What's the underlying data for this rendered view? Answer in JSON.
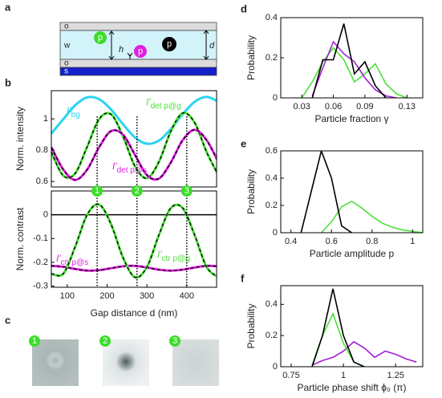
{
  "panels": [
    "a",
    "b",
    "c",
    "d",
    "e",
    "f"
  ],
  "schematic": {
    "layers": [
      "o",
      "w",
      "o",
      "s"
    ],
    "particles": [
      "p",
      "p",
      "p"
    ],
    "h": "h",
    "d": "d"
  },
  "images": [
    "1",
    "2",
    "3"
  ],
  "chart_data": [
    {
      "type": "line",
      "ylabel": "Norm. intensity",
      "x": [
        60,
        90,
        120,
        150,
        180,
        210,
        240,
        270,
        300,
        330,
        360,
        390,
        420,
        450,
        480
      ],
      "xlim": [
        60,
        475
      ],
      "ylim": [
        0.565,
        1.18
      ],
      "yticks": [
        0.6,
        0.8,
        1
      ],
      "series": [
        {
          "name": "I′",
          "subscript": "bg",
          "color": "#2ad4f0",
          "values": [
            0.906,
            0.998,
            1.087,
            1.137,
            1.126,
            1.06,
            0.966,
            0.881,
            0.841,
            0.861,
            0.935,
            1.03,
            1.109,
            1.14,
            1.109
          ]
        },
        {
          "name": "I′",
          "subscript": "det p@g",
          "color": "#4be03a",
          "dashed": true,
          "values": [
            0.788,
            0.637,
            0.652,
            0.822,
            0.998,
            1.029,
            0.888,
            0.697,
            0.621,
            0.725,
            0.92,
            1.037,
            0.975,
            0.788,
            0.637
          ]
        },
        {
          "name": "I′",
          "subscript": "det p@s",
          "color": "#e020e0",
          "dashed": true,
          "values": [
            0.819,
            0.676,
            0.61,
            0.676,
            0.819,
            0.922,
            0.899,
            0.77,
            0.641,
            0.618,
            0.721,
            0.864,
            0.93,
            0.864,
            0.721
          ]
        }
      ]
    },
    {
      "type": "line",
      "ylabel": "Norm. contrast",
      "xlabel": "Gap distance d (nm)",
      "x": [
        60,
        90,
        120,
        150,
        180,
        210,
        240,
        270,
        300,
        330,
        360,
        390,
        420,
        450,
        480
      ],
      "xlim": [
        60,
        475
      ],
      "xticks": [
        100,
        200,
        300,
        400
      ],
      "ylim": [
        -0.305,
        0.1
      ],
      "yticks": [
        0,
        -0.1,
        -0.2,
        -0.3
      ],
      "hlines": [
        0
      ],
      "vlines": [
        {
          "x": 175,
          "label": "1"
        },
        {
          "x": 275,
          "label": "2"
        },
        {
          "x": 400,
          "label": "3"
        }
      ],
      "series": [
        {
          "name": "I′",
          "subscript": "ctr p@s",
          "color": "#e020e0",
          "dashed": true,
          "values": [
            -0.215,
            -0.219,
            -0.228,
            -0.235,
            -0.233,
            -0.225,
            -0.217,
            -0.215,
            -0.222,
            -0.231,
            -0.235,
            -0.231,
            -0.222,
            -0.215,
            -0.217
          ]
        },
        {
          "name": "I′",
          "subscript": "ctr p@g",
          "color": "#4be03a",
          "dashed": true,
          "values": [
            -0.248,
            -0.248,
            -0.134,
            0.0,
            0.043,
            -0.04,
            -0.18,
            -0.263,
            -0.22,
            -0.086,
            0.028,
            0.028,
            -0.086,
            -0.22,
            -0.263
          ]
        }
      ]
    },
    {
      "type": "line",
      "ylabel": "Probability",
      "xlabel": "Particle fraction γ",
      "xlim": [
        0.01,
        0.145
      ],
      "xticks": [
        0.03,
        0.06,
        0.09,
        0.13
      ],
      "ylim": [
        0,
        0.4
      ],
      "yticks": [
        0,
        0.2,
        0.4
      ],
      "series": [
        {
          "color": "#4be03a",
          "x": [
            0.03,
            0.04,
            0.05,
            0.06,
            0.07,
            0.08,
            0.09,
            0.1,
            0.11,
            0.12,
            0.13
          ],
          "values": [
            0,
            0.08,
            0.18,
            0.25,
            0.19,
            0.08,
            0.12,
            0.17,
            0.07,
            0.02,
            0
          ]
        },
        {
          "color": "#a21fd6",
          "x": [
            0.04,
            0.05,
            0.06,
            0.07,
            0.08,
            0.09,
            0.1,
            0.11,
            0.12
          ],
          "values": [
            0.01,
            0.15,
            0.28,
            0.22,
            0.18,
            0.1,
            0.04,
            0.01,
            0
          ]
        },
        {
          "color": "#000000",
          "x": [
            0.04,
            0.05,
            0.06,
            0.07,
            0.08,
            0.09,
            0.1,
            0.11
          ],
          "values": [
            0,
            0.19,
            0.19,
            0.37,
            0.12,
            0.18,
            0.06,
            0
          ]
        }
      ]
    },
    {
      "type": "line",
      "ylabel": "Probability",
      "xlabel": "Particle amplitude p",
      "xlim": [
        0.35,
        1.05
      ],
      "xticks": [
        0.4,
        0.6,
        0.8,
        1
      ],
      "ylim": [
        0,
        0.6
      ],
      "yticks": [
        0,
        0.2,
        0.4,
        0.6
      ],
      "series": [
        {
          "color": "#4be03a",
          "x": [
            0.55,
            0.6,
            0.65,
            0.7,
            0.75,
            0.8,
            0.85,
            0.9,
            0.95,
            1.0,
            1.05
          ],
          "values": [
            0,
            0.08,
            0.19,
            0.23,
            0.18,
            0.12,
            0.07,
            0.04,
            0.02,
            0.01,
            0
          ]
        },
        {
          "color": "#000000",
          "x": [
            0.45,
            0.5,
            0.55,
            0.6,
            0.65,
            0.7
          ],
          "values": [
            0,
            0.3,
            0.6,
            0.4,
            0.05,
            0
          ]
        }
      ]
    },
    {
      "type": "line",
      "ylabel": "Probability",
      "xlabel": "Particle phase shift ϕ₀ (π)",
      "xlim": [
        0.7,
        1.38
      ],
      "xticks": [
        0.75,
        1,
        1.25
      ],
      "ylim": [
        0,
        0.52
      ],
      "yticks": [
        0,
        0.2,
        0.4
      ],
      "series": [
        {
          "color": "#a21fd6",
          "x": [
            0.85,
            0.9,
            0.95,
            1.0,
            1.05,
            1.1,
            1.15,
            1.2,
            1.25,
            1.3,
            1.35
          ],
          "values": [
            0.01,
            0.04,
            0.06,
            0.1,
            0.16,
            0.12,
            0.06,
            0.1,
            0.08,
            0.05,
            0.03
          ]
        },
        {
          "color": "#4be03a",
          "x": [
            0.85,
            0.9,
            0.95,
            1.0,
            1.05,
            1.1
          ],
          "values": [
            0.01,
            0.2,
            0.34,
            0.15,
            0.03,
            0
          ]
        },
        {
          "color": "#000000",
          "x": [
            0.85,
            0.9,
            0.95,
            1.0,
            1.05,
            1.1
          ],
          "values": [
            0,
            0.2,
            0.5,
            0.2,
            0.03,
            0
          ]
        }
      ]
    }
  ]
}
